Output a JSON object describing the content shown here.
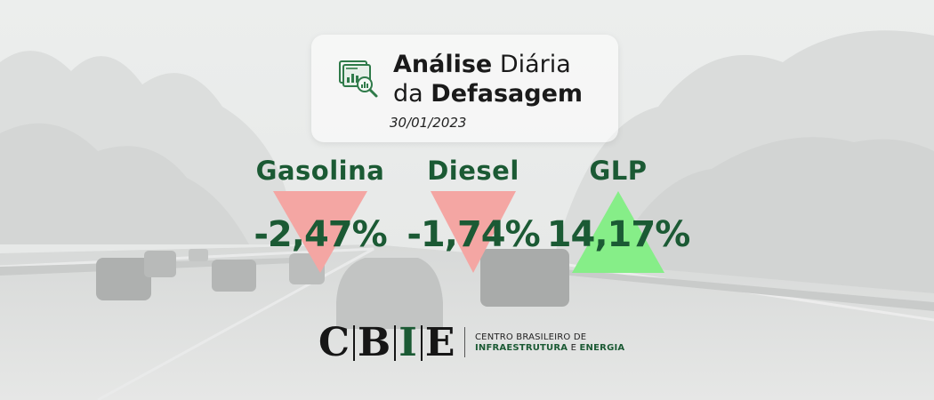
{
  "header": {
    "title_bold_1": "Análise",
    "title_regular_1": "Diária",
    "title_regular_2": "da",
    "title_bold_2": "Defasagem",
    "date": "30/01/2023",
    "icon": "report-analytics-icon"
  },
  "fuels": [
    {
      "name": "Gasolina",
      "value": "-2,47%",
      "direction": "down",
      "arrow_color": "#f4a6a3"
    },
    {
      "name": "Diesel",
      "value": "-1,74%",
      "direction": "down",
      "arrow_color": "#f4a6a3"
    },
    {
      "name": "GLP",
      "value": "14,17%",
      "direction": "up",
      "arrow_color": "#86ee88"
    }
  ],
  "logo": {
    "letter_1": "C",
    "letter_2": "B",
    "letter_3": "I",
    "letter_4": "E",
    "line_1": "CENTRO BRASILEIRO DE",
    "line_2_green": "INFRAESTRUTURA",
    "line_2_mid": "E",
    "line_2_end": "ENERGIA"
  },
  "colors": {
    "accent_green": "#1b5a34",
    "down_red": "#f4a6a3",
    "up_green": "#86ee88"
  }
}
